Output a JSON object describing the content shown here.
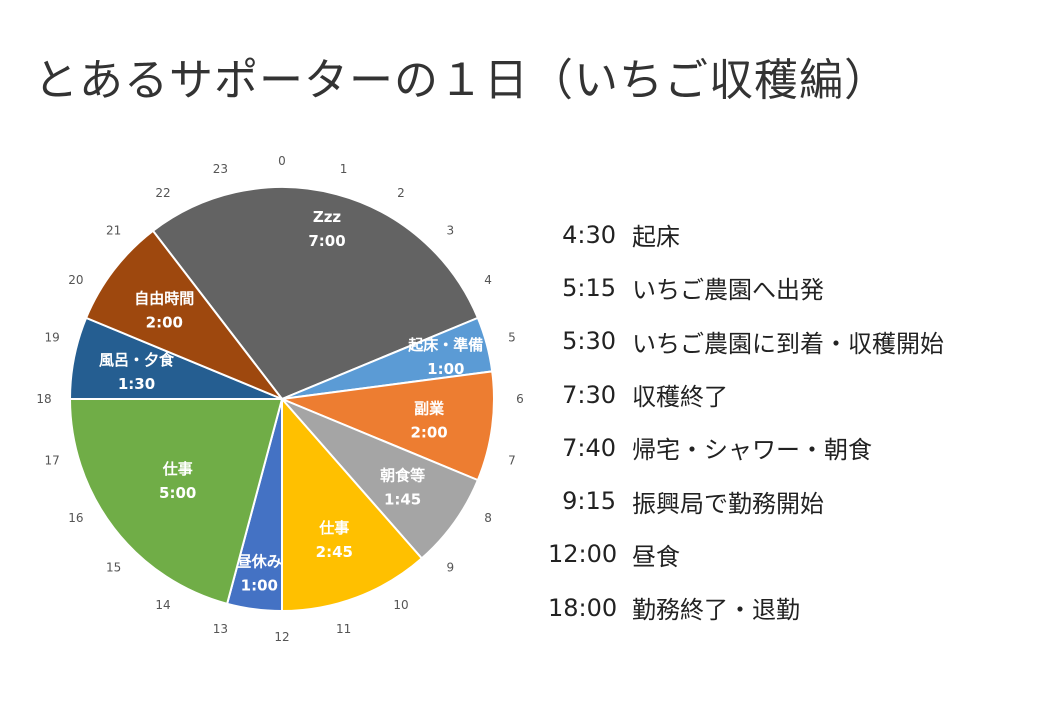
{
  "title": "とあるサポーターの１日（いちご収穫編）",
  "chart_data": {
    "type": "pie",
    "unit": "hours",
    "hour_ticks": [
      "0",
      "1",
      "2",
      "3",
      "4",
      "5",
      "6",
      "7",
      "8",
      "9",
      "10",
      "11",
      "12",
      "13",
      "14",
      "15",
      "16",
      "17",
      "18",
      "19",
      "20",
      "21",
      "22",
      "23"
    ],
    "slices": [
      {
        "name": "Zzz",
        "duration": "7:00",
        "start": 21.5,
        "hours": 7.0,
        "color": "#636363"
      },
      {
        "name": "起床・準備",
        "duration": "1:00",
        "start": 4.5,
        "hours": 1.0,
        "color": "#5b9bd5"
      },
      {
        "name": "副業",
        "duration": "2:00",
        "start": 5.5,
        "hours": 2.0,
        "color": "#ed7d31"
      },
      {
        "name": "朝食等",
        "duration": "1:45",
        "start": 7.5,
        "hours": 1.75,
        "color": "#a5a5a5"
      },
      {
        "name": "仕事",
        "duration": "2:45",
        "start": 9.25,
        "hours": 2.75,
        "color": "#ffc000"
      },
      {
        "name": "昼休み",
        "duration": "1:00",
        "start": 12.0,
        "hours": 1.0,
        "color": "#4472c4"
      },
      {
        "name": "仕事",
        "duration": "5:00",
        "start": 13.0,
        "hours": 5.0,
        "color": "#70ad47"
      },
      {
        "name": "風呂・夕食",
        "duration": "1:30",
        "start": 18.0,
        "hours": 1.5,
        "color": "#255e91"
      },
      {
        "name": "自由時間",
        "duration": "2:00",
        "start": 19.5,
        "hours": 2.0,
        "color": "#9e480e"
      }
    ]
  },
  "schedule": [
    {
      "time": "4:30",
      "event": "起床"
    },
    {
      "time": "5:15",
      "event": "いちご農園へ出発"
    },
    {
      "time": "5:30",
      "event": "いちご農園に到着・収穫開始"
    },
    {
      "time": "7:30",
      "event": "収穫終了"
    },
    {
      "time": "7:40",
      "event": "帰宅・シャワー・朝食"
    },
    {
      "time": "9:15",
      "event": "振興局で勤務開始"
    },
    {
      "time": "12:00",
      "event": "昼食"
    },
    {
      "time": "18:00",
      "event": "勤務終了・退勤"
    }
  ]
}
